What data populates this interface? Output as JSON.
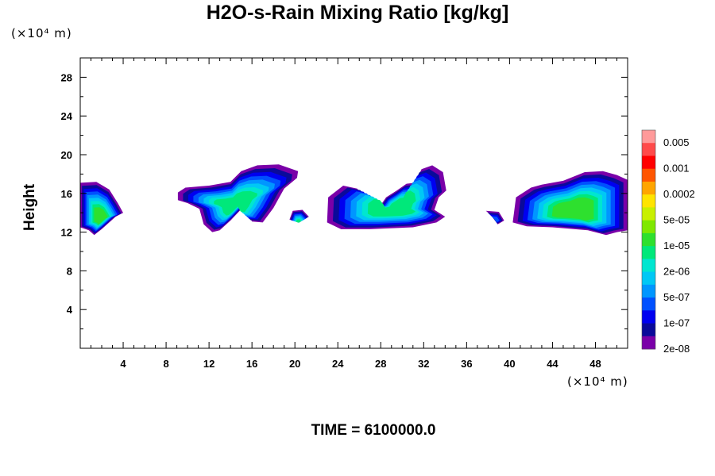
{
  "chart_data": {
    "type": "heatmap",
    "title": "H2O-s-Rain Mixing Ratio [kg/kg]",
    "ylabel": "Height",
    "x_unit_label": "(×10⁴ m)",
    "y_unit_label": "(×10⁴ m)",
    "footer": "TIME = 6100000.0",
    "xlim": [
      0,
      51
    ],
    "ylim": [
      0,
      30
    ],
    "x_ticks": [
      {
        "value": 4,
        "label": "4"
      },
      {
        "value": 8,
        "label": "8"
      },
      {
        "value": 12,
        "label": "12"
      },
      {
        "value": 16,
        "label": "16"
      },
      {
        "value": 20,
        "label": "20"
      },
      {
        "value": 24,
        "label": "24"
      },
      {
        "value": 28,
        "label": "28"
      },
      {
        "value": 32,
        "label": "32"
      },
      {
        "value": 36,
        "label": "36"
      },
      {
        "value": 40,
        "label": "40"
      },
      {
        "value": 44,
        "label": "44"
      },
      {
        "value": 48,
        "label": "48"
      }
    ],
    "y_ticks": [
      {
        "value": 4,
        "label": "4"
      },
      {
        "value": 8,
        "label": "8"
      },
      {
        "value": 12,
        "label": "12"
      },
      {
        "value": 16,
        "label": "16"
      },
      {
        "value": 20,
        "label": "20"
      },
      {
        "value": 24,
        "label": "24"
      },
      {
        "value": 28,
        "label": "28"
      }
    ],
    "colorbar": {
      "colors": [
        "#ff9a9a",
        "#ff4a4a",
        "#ff0000",
        "#ff5500",
        "#ffa500",
        "#ffe400",
        "#c8f000",
        "#7fe800",
        "#2ee02e",
        "#00e87a",
        "#00e6d0",
        "#00c8f5",
        "#0096ff",
        "#0050ff",
        "#0000f0",
        "#0a0a9a",
        "#7a00a8"
      ],
      "labels": [
        "0.005",
        "0.001",
        "0.0002",
        "5e-05",
        "1e-05",
        "2e-06",
        "5e-07",
        "1e-07",
        "2e-08"
      ]
    },
    "clouds": [
      {
        "name": "cloud-a",
        "polygon": [
          [
            0,
            12.5
          ],
          [
            0,
            17.1
          ],
          [
            1.5,
            17.2
          ],
          [
            2.7,
            16.4
          ],
          [
            3.5,
            15.0
          ],
          [
            4,
            14.0
          ],
          [
            3.3,
            13.6
          ],
          [
            2,
            12.3
          ],
          [
            1.3,
            11.7
          ],
          [
            0.8,
            12.2
          ]
        ],
        "max_level": 8,
        "decay": 0.55
      },
      {
        "name": "cloud-b",
        "polygon": [
          [
            9.1,
            16.1
          ],
          [
            9.8,
            16.6
          ],
          [
            12,
            16.8
          ],
          [
            14,
            17.2
          ],
          [
            15,
            18.3
          ],
          [
            16.5,
            18.9
          ],
          [
            18.5,
            19.0
          ],
          [
            20.3,
            18.3
          ],
          [
            20.2,
            17.6
          ],
          [
            19,
            16.5
          ],
          [
            18,
            14.5
          ],
          [
            17,
            13.0
          ],
          [
            16,
            13.1
          ],
          [
            15.2,
            14.6
          ],
          [
            14.0,
            13.2
          ],
          [
            13.0,
            12.2
          ],
          [
            12.3,
            12.0
          ],
          [
            11.5,
            12.8
          ],
          [
            11.1,
            14.4
          ],
          [
            10,
            15
          ],
          [
            9.1,
            15.3
          ]
        ],
        "max_level": 7,
        "decay": 0.55
      },
      {
        "name": "cloud-c",
        "polygon": [
          [
            19.5,
            13.3
          ],
          [
            19.8,
            14.2
          ],
          [
            20.7,
            14.3
          ],
          [
            21.3,
            13.6
          ],
          [
            20.4,
            13.0
          ]
        ],
        "max_level": 7,
        "decay": 0.45
      },
      {
        "name": "cloud-d",
        "polygon": [
          [
            23,
            13.0
          ],
          [
            23.1,
            15.6
          ],
          [
            24.5,
            16.8
          ],
          [
            25.8,
            16.5
          ],
          [
            26.6,
            15.4
          ],
          [
            27,
            14.6
          ],
          [
            28,
            14.8
          ],
          [
            28.5,
            15.6
          ],
          [
            29.5,
            16.3
          ],
          [
            30.4,
            17.0
          ],
          [
            31.2,
            17.1
          ],
          [
            31.8,
            18.5
          ],
          [
            32.8,
            18.9
          ],
          [
            33.8,
            18.2
          ],
          [
            34.1,
            16.3
          ],
          [
            33.4,
            15.6
          ],
          [
            33.0,
            14.3
          ],
          [
            34.0,
            13.6
          ],
          [
            33.2,
            13.0
          ],
          [
            31,
            12.5
          ],
          [
            27,
            12.3
          ],
          [
            24.3,
            12.3
          ]
        ],
        "max_level": 7,
        "decay": 0.6
      },
      {
        "name": "cloud-e",
        "polygon": [
          [
            37.8,
            14.2
          ],
          [
            39.0,
            14.1
          ],
          [
            39.5,
            13.2
          ],
          [
            38.9,
            12.8
          ],
          [
            38.3,
            13.7
          ]
        ],
        "max_level": 3,
        "decay": 0.4
      },
      {
        "name": "cloud-f",
        "polygon": [
          [
            40.3,
            13.0
          ],
          [
            40.6,
            15.6
          ],
          [
            42,
            16.6
          ],
          [
            43,
            16.9
          ],
          [
            45,
            17.3
          ],
          [
            47,
            18.2
          ],
          [
            48.7,
            18.3
          ],
          [
            50,
            17.9
          ],
          [
            51,
            17.4
          ],
          [
            51,
            12.2
          ],
          [
            50,
            12.0
          ],
          [
            49,
            11.7
          ],
          [
            47.3,
            12.2
          ],
          [
            44,
            12.5
          ],
          [
            41.6,
            12.6
          ]
        ],
        "max_level": 8,
        "decay": 0.6
      }
    ]
  }
}
